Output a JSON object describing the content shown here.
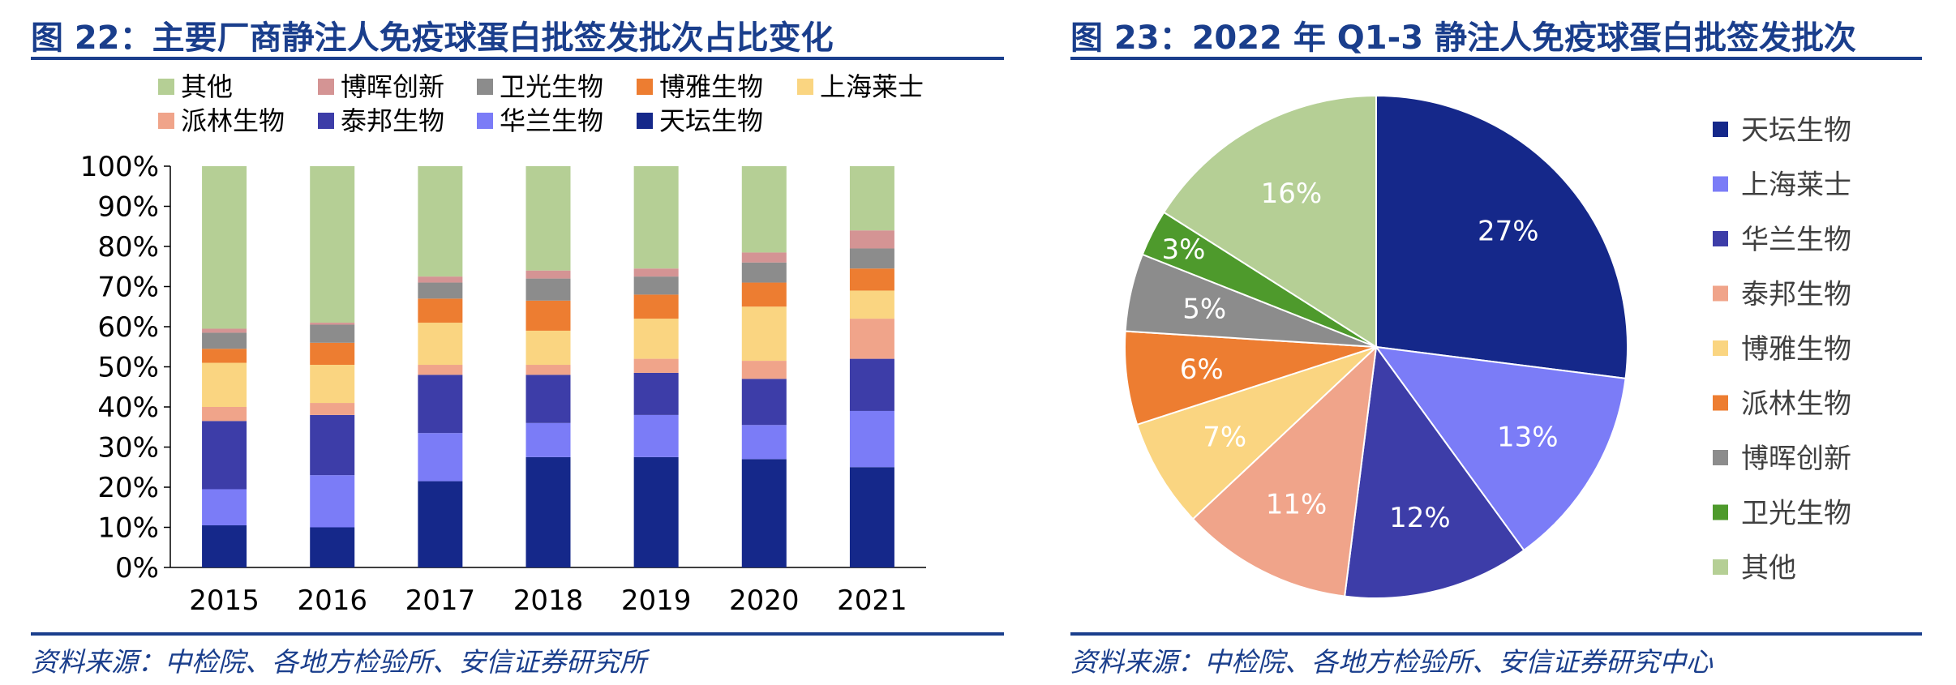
{
  "left": {
    "title": "图 22：主要厂商静注人免疫球蛋白批签发批次占比变化",
    "source": "资料来源：中检院、各地方检验所、安信证券研究所"
  },
  "right": {
    "title": "图 23：2022 年 Q1-3 静注人免疫球蛋白批签发批次",
    "source": "资料来源：中检院、各地方检验所、安信证券研究中心"
  },
  "chart_data": [
    {
      "type": "bar",
      "stacked": true,
      "categories": [
        "2015",
        "2016",
        "2017",
        "2018",
        "2019",
        "2020",
        "2021"
      ],
      "ylim": [
        0,
        100
      ],
      "yticks": [
        "0%",
        "10%",
        "20%",
        "30%",
        "40%",
        "50%",
        "60%",
        "70%",
        "80%",
        "90%",
        "100%"
      ],
      "legend_position": "top",
      "legend_order": [
        "其他",
        "博晖创新",
        "卫光生物",
        "博雅生物",
        "上海莱士",
        "派林生物",
        "泰邦生物",
        "华兰生物",
        "天坛生物"
      ],
      "series": [
        {
          "name": "天坛生物",
          "color": "#15288a",
          "values": [
            10.5,
            10,
            21.5,
            27.5,
            27.5,
            27,
            25
          ]
        },
        {
          "name": "华兰生物",
          "color": "#7b7cf7",
          "values": [
            9,
            13,
            12,
            8.5,
            10.5,
            8.5,
            14
          ]
        },
        {
          "name": "泰邦生物",
          "color": "#3d3da8",
          "values": [
            17,
            15,
            14.5,
            12,
            10.5,
            11.5,
            13
          ]
        },
        {
          "name": "派林生物",
          "color": "#f0a48a",
          "values": [
            3.5,
            3,
            2.5,
            2.5,
            3.5,
            4.5,
            10
          ]
        },
        {
          "name": "上海莱士",
          "color": "#fad581",
          "values": [
            11,
            9.5,
            10.5,
            8.5,
            10,
            13.5,
            7
          ]
        },
        {
          "name": "博雅生物",
          "color": "#ed7d31",
          "values": [
            3.5,
            5.5,
            6,
            7.5,
            6,
            6,
            5.5
          ]
        },
        {
          "name": "卫光生物",
          "color": "#8c8c8c",
          "values": [
            4,
            4.5,
            4,
            5.5,
            4.5,
            5,
            5
          ]
        },
        {
          "name": "博晖创新",
          "color": "#d49494",
          "values": [
            1,
            0.5,
            1.5,
            2,
            2,
            2.5,
            4.5
          ]
        },
        {
          "name": "其他",
          "color": "#b5cf95",
          "values": [
            40.5,
            39,
            27.5,
            26,
            25.5,
            21.5,
            16
          ]
        }
      ]
    },
    {
      "type": "pie",
      "legend_position": "right",
      "slices": [
        {
          "name": "天坛生物",
          "value": 27,
          "label": "27%",
          "color": "#15288a"
        },
        {
          "name": "上海莱士",
          "value": 13,
          "label": "13%",
          "color": "#7b7cf7"
        },
        {
          "name": "华兰生物",
          "value": 12,
          "label": "12%",
          "color": "#3d3da8"
        },
        {
          "name": "泰邦生物",
          "value": 11,
          "label": "11%",
          "color": "#f0a48a"
        },
        {
          "name": "博雅生物",
          "value": 7,
          "label": "7%",
          "color": "#fad581"
        },
        {
          "name": "派林生物",
          "value": 6,
          "label": "6%",
          "color": "#ed7d31"
        },
        {
          "name": "博晖创新",
          "value": 5,
          "label": "5%",
          "color": "#8c8c8c"
        },
        {
          "name": "卫光生物",
          "value": 3,
          "label": "3%",
          "color": "#4e9a2c"
        },
        {
          "name": "其他",
          "value": 16,
          "label": "16%",
          "color": "#b5cf95"
        }
      ]
    }
  ]
}
